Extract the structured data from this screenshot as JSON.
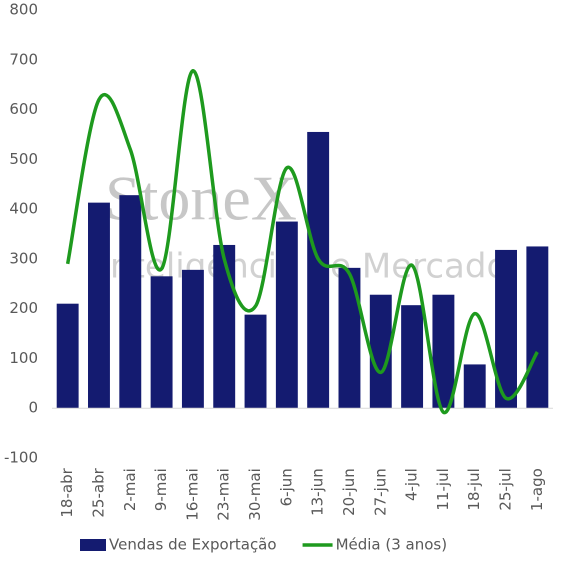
{
  "chart_data": {
    "type": "bar-line",
    "categories": [
      "18-abr",
      "25-abr",
      "2-mai",
      "9-mai",
      "16-mai",
      "23-mai",
      "30-mai",
      "6-jun",
      "13-jun",
      "20-jun",
      "27-jun",
      "4-jul",
      "11-jul",
      "18-jul",
      "25-jul",
      "1-ago"
    ],
    "series": [
      {
        "name": "Vendas de Exportação",
        "type": "bar",
        "color": "#141b70",
        "values": [
          210,
          413,
          428,
          265,
          278,
          328,
          188,
          375,
          555,
          282,
          228,
          207,
          228,
          88,
          318,
          325
        ]
      },
      {
        "name": "Média (3 anos)",
        "type": "line",
        "smooth": true,
        "color": "#1e9a1e",
        "values": [
          290,
          620,
          520,
          280,
          678,
          300,
          205,
          483,
          300,
          270,
          72,
          287,
          -8,
          190,
          20,
          113
        ]
      }
    ],
    "ylim": [
      -100,
      800
    ],
    "yticks": [
      -100,
      0,
      100,
      200,
      300,
      400,
      500,
      600,
      700,
      800
    ],
    "grid": false,
    "legend": "bottom",
    "watermark": {
      "brand": "StoneX",
      "tagline": "Inteligência de Mercado"
    }
  }
}
